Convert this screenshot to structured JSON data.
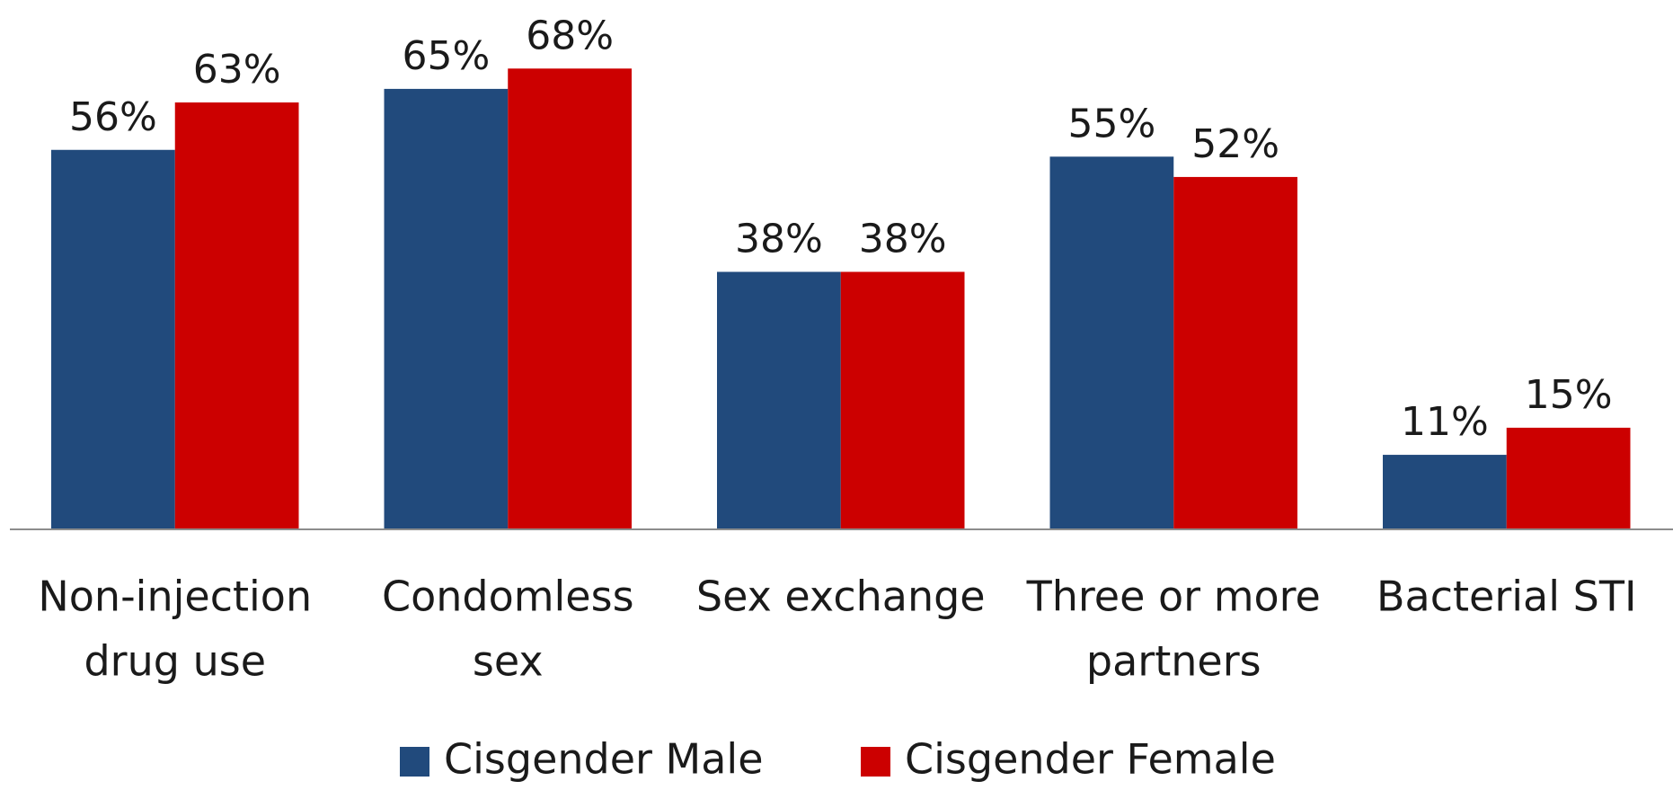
{
  "chart_data": {
    "type": "bar",
    "categories": [
      [
        "Non-injection",
        "drug use"
      ],
      [
        "Condomless",
        "sex"
      ],
      [
        "Sex exchange"
      ],
      [
        "Three or more",
        "partners"
      ],
      [
        "Bacterial STI"
      ]
    ],
    "series": [
      {
        "name": "Cisgender Male",
        "color": "#214a7c",
        "values": [
          56,
          65,
          38,
          55,
          11
        ],
        "value_labels": [
          "56%",
          "65%",
          "38%",
          "55%",
          "11%"
        ]
      },
      {
        "name": "Cisgender Female",
        "color": "#cc0000",
        "values": [
          63,
          68,
          38,
          52,
          15
        ],
        "value_labels": [
          "63%",
          "68%",
          "38%",
          "52%",
          "15%"
        ]
      }
    ],
    "ylim": [
      0,
      100
    ],
    "legend": "bottom"
  }
}
